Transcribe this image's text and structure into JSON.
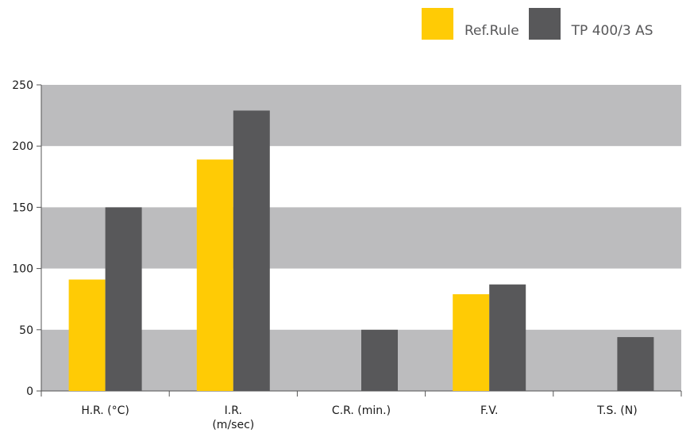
{
  "colors": {
    "ref_rule": "#ffcb05",
    "tp": "#58585a",
    "band": "#bcbcbe",
    "axis": "#555555"
  },
  "legend": {
    "items": [
      {
        "label": "Ref.Rule",
        "color": "#ffcb05"
      },
      {
        "label": "TP 400/3 AS",
        "color": "#58585a"
      }
    ]
  },
  "chart_data": {
    "type": "bar",
    "categories": [
      [
        "H.R. (°C)"
      ],
      [
        "I.R.",
        "(m/sec)"
      ],
      [
        "C.R. (min.)"
      ],
      [
        "F.V."
      ],
      [
        "T.S. (N)"
      ]
    ],
    "series": [
      {
        "name": "Ref.Rule",
        "values": [
          91,
          189,
          null,
          79,
          null
        ]
      },
      {
        "name": "TP 400/3 AS",
        "values": [
          150,
          229,
          50,
          87,
          44
        ]
      }
    ],
    "yticks": [
      "0",
      "50",
      "100",
      "150",
      "200",
      "250"
    ],
    "ylim": [
      0,
      250
    ],
    "grid": "alternating horizontal bands",
    "legend_position": "top-right"
  }
}
